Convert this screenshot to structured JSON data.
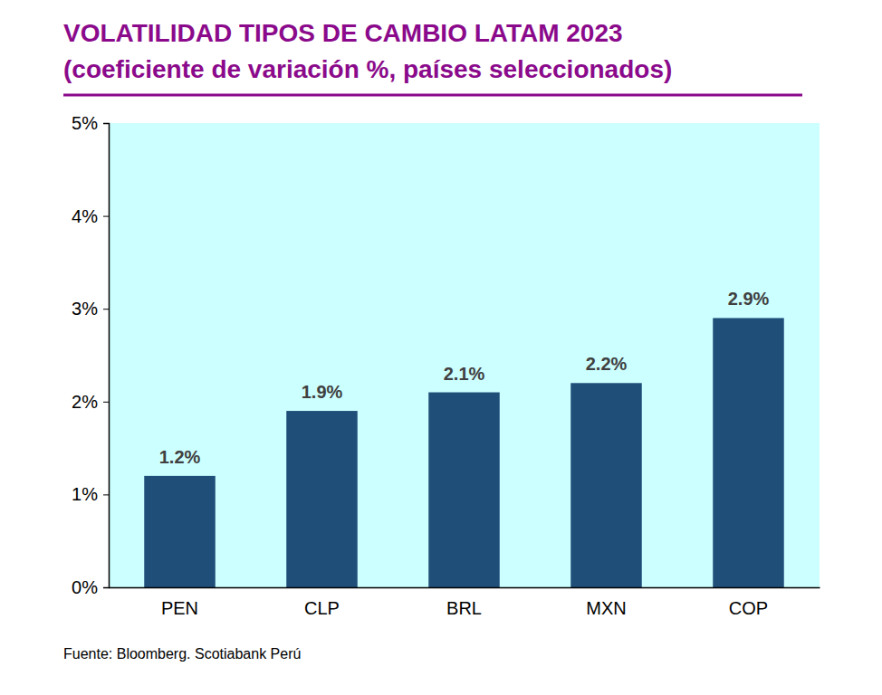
{
  "chart_data": {
    "type": "bar",
    "title": "VOLATILIDAD TIPOS DE CAMBIO LATAM 2023",
    "subtitle": "(coeficiente de variación %, países seleccionados)",
    "source": "Fuente: Bloomberg. Scotiabank Perú",
    "categories": [
      "PEN",
      "CLP",
      "BRL",
      "MXN",
      "COP"
    ],
    "values": [
      1.2,
      1.9,
      2.1,
      2.2,
      2.9
    ],
    "value_labels": [
      "1.2%",
      "1.9%",
      "2.1%",
      "2.2%",
      "2.9%"
    ],
    "color": "#1f4e79",
    "data_labels": true,
    "grid": false,
    "ylim": [
      0,
      5
    ],
    "yticks": [
      {
        "value": 0,
        "label": "0%"
      },
      {
        "value": 1,
        "label": "1%"
      },
      {
        "value": 2,
        "label": "2%"
      },
      {
        "value": 3,
        "label": "3%"
      },
      {
        "value": 4,
        "label": "4%"
      },
      {
        "value": 5,
        "label": "5%"
      }
    ]
  }
}
